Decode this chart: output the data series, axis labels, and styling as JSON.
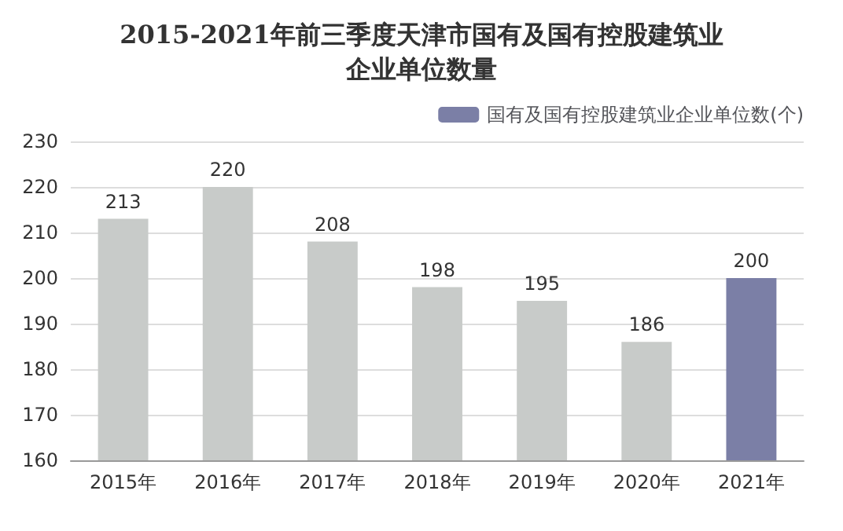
{
  "chart_data": {
    "type": "bar",
    "title": "2015-2021年前三季度天津市国有及国有控股建筑业企业单位数量",
    "categories": [
      "2015年",
      "2016年",
      "2017年",
      "2018年",
      "2019年",
      "2020年",
      "2021年"
    ],
    "series": [
      {
        "name": "国有及国有控股建筑业企业单位数(个)",
        "color": "#7b7fa6",
        "colors": [
          "#c8cbc9",
          "#c8cbc9",
          "#c8cbc9",
          "#c8cbc9",
          "#c8cbc9",
          "#c8cbc9",
          "#7b7fa6"
        ],
        "values": [
          213,
          220,
          208,
          198,
          195,
          186,
          200
        ]
      }
    ],
    "ylim": [
      160,
      230
    ],
    "yticks": [
      160,
      170,
      180,
      190,
      200,
      210,
      220,
      230
    ],
    "grid": "y",
    "legend": "top right",
    "data_labels": true
  }
}
